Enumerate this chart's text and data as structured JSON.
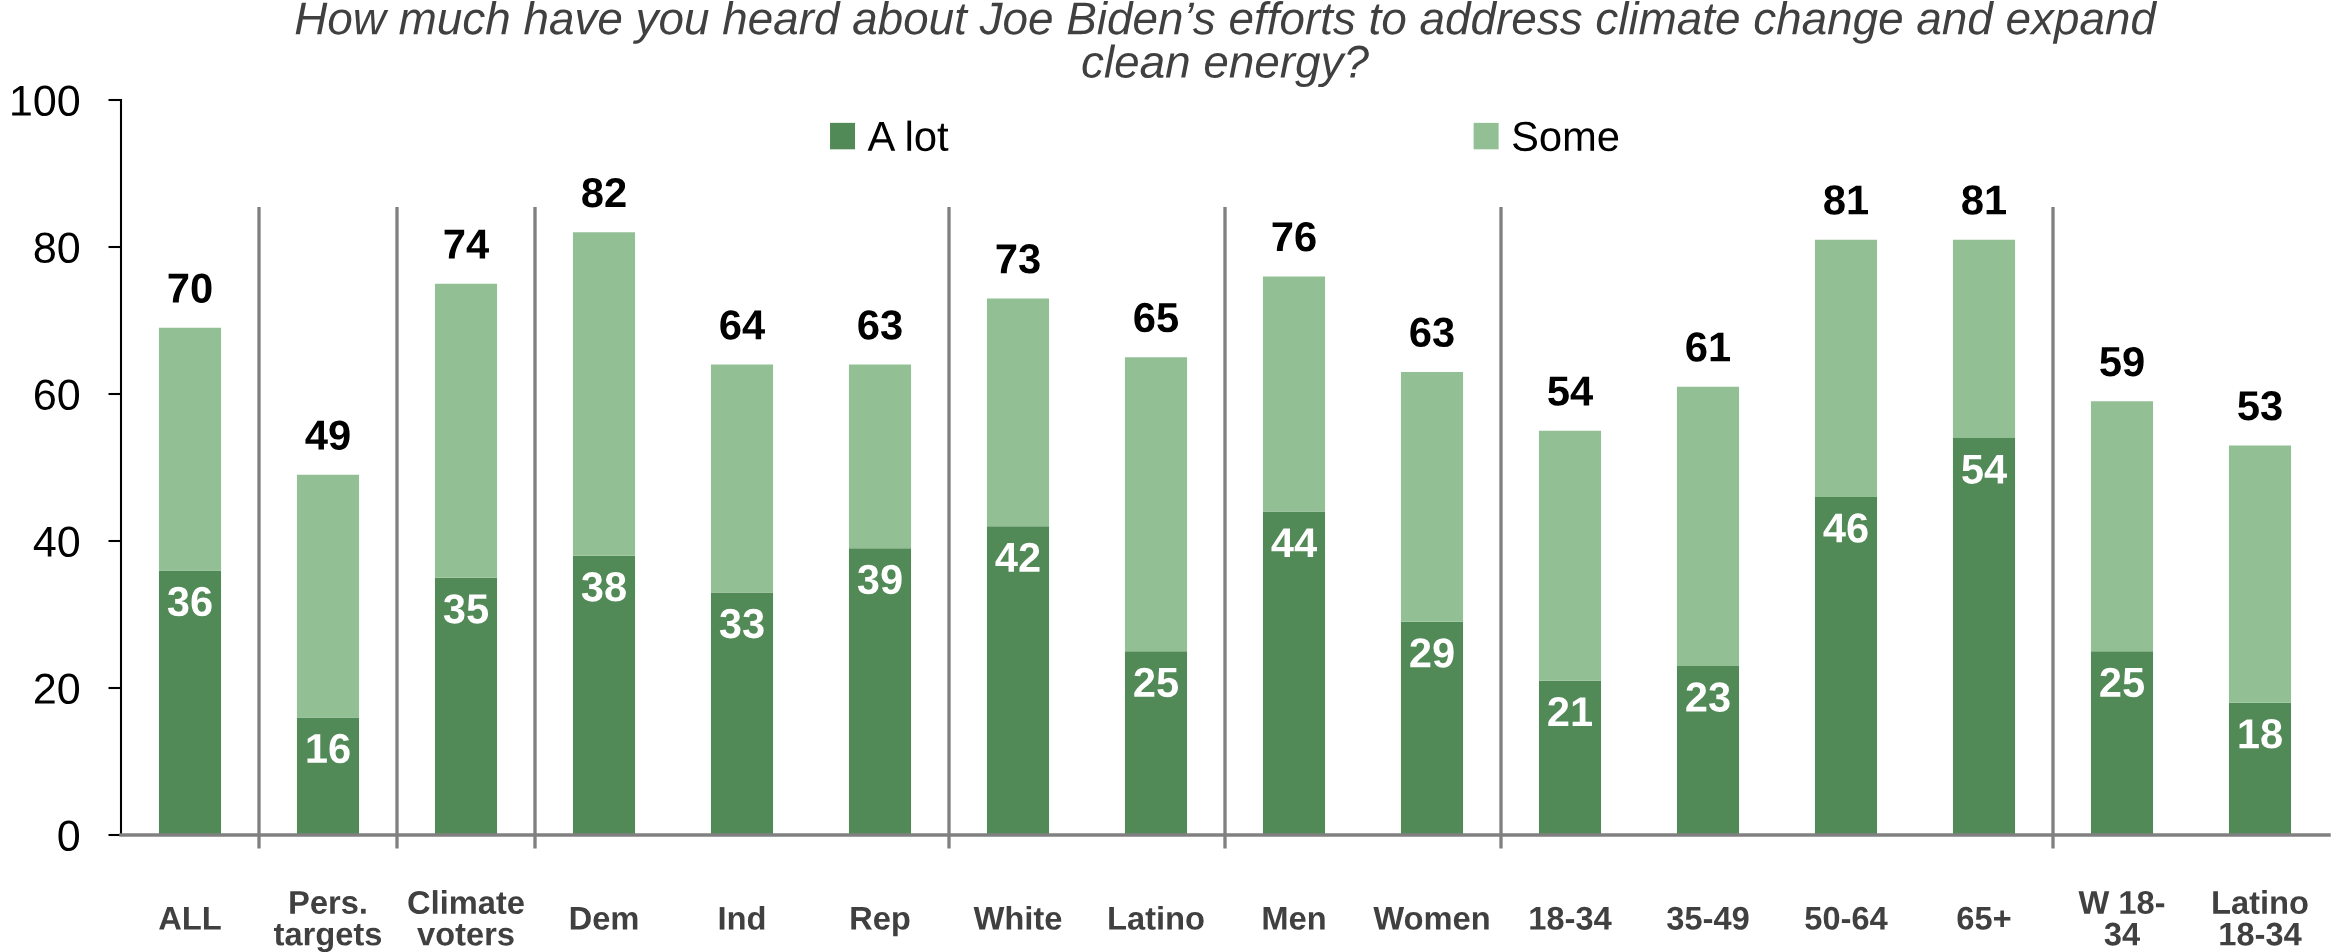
{
  "chart_data": {
    "type": "bar",
    "title": "How much have you heard about Joe Biden’s efforts to address climate change and expand\nclean energy?",
    "categories": [
      "ALL",
      "Pers.\ntargets",
      "Climate\nvoters",
      "Dem",
      "Ind",
      "Rep",
      "White",
      "Latino",
      "Men",
      "Women",
      "18-34",
      "35-49",
      "50-64",
      "65+",
      "W 18-\n34",
      "Latino\n18-34"
    ],
    "series": [
      {
        "name": "A lot",
        "color": "#518a56",
        "values": [
          36,
          16,
          35,
          38,
          33,
          39,
          42,
          25,
          44,
          29,
          21,
          23,
          46,
          54,
          25,
          18
        ],
        "value_labels": [
          "36",
          "16",
          "35",
          "38",
          "33",
          "39",
          "42",
          "25",
          "44",
          "29",
          "21",
          "23",
          "46",
          "54",
          "25",
          "18"
        ]
      },
      {
        "name": "Some",
        "color": "#92bf94",
        "values": [
          33,
          33,
          40,
          44,
          31,
          25,
          31,
          40,
          32,
          34,
          34,
          38,
          35,
          27,
          34,
          35
        ]
      }
    ],
    "stacked": true,
    "totals": [
      "70",
      "49",
      "74",
      "82",
      "64",
      "63",
      "73",
      "65",
      "76",
      "63",
      "54",
      "61",
      "81",
      "81",
      "59",
      "53"
    ],
    "ylim": [
      0,
      100
    ],
    "yticks": [
      0,
      20,
      40,
      60,
      80,
      100
    ],
    "legend": "top"
  }
}
